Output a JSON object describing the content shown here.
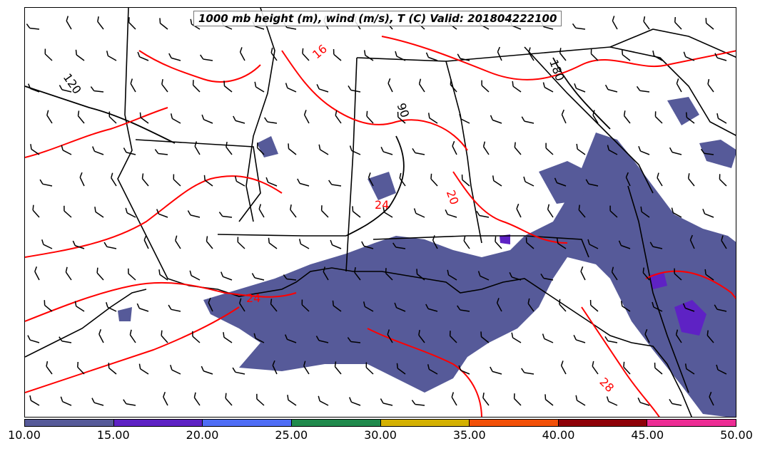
{
  "title": "1000 mb height (m), wind (m/s), T (C) Valid: 201804222100",
  "colorbar": {
    "ticks": [
      "10.00",
      "15.00",
      "20.00",
      "25.00",
      "30.00",
      "35.00",
      "40.00",
      "45.00",
      "50.00"
    ],
    "colors": [
      "#565a99",
      "#5e22c4",
      "#4f6df5",
      "#208a4c",
      "#d4b100",
      "#f25008",
      "#8e0008",
      "#ec2c94"
    ]
  },
  "contour_labels": {
    "temperature": [
      "16",
      "20",
      "24",
      "24",
      "28"
    ],
    "height": [
      "120",
      "90",
      "180"
    ]
  },
  "styles": {
    "temperature_color": "#ff0000",
    "height_color": "#000000",
    "wind_barb_color": "#000000",
    "border_color": "#000000"
  }
}
